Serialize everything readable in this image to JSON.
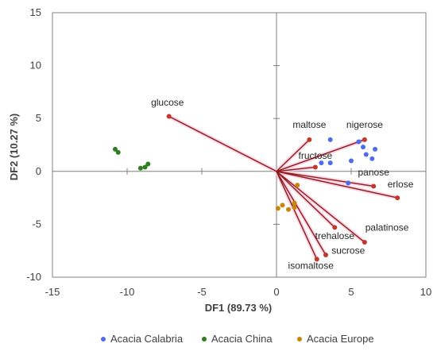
{
  "chart_data": {
    "type": "scatter",
    "xlabel": "DF1 (89.73 %)",
    "ylabel": "DF2 (10.27 %)",
    "xlim": [
      -15,
      10
    ],
    "ylim": [
      -10,
      15
    ],
    "xticks": [
      -15,
      -10,
      -5,
      0,
      5,
      10
    ],
    "yticks": [
      -10,
      -5,
      0,
      5,
      10,
      15
    ],
    "legend_position": "bottom",
    "grid": false,
    "vector_color": "#8B1A1A",
    "vector_highlight": "#F4C2D7",
    "series": [
      {
        "name": "Acacia Calabria",
        "color": "#4F6BED",
        "points": [
          [
            3.6,
            3.0
          ],
          [
            5.5,
            2.8
          ],
          [
            5.8,
            2.3
          ],
          [
            6.6,
            2.1
          ],
          [
            6.0,
            1.6
          ],
          [
            6.4,
            1.2
          ],
          [
            5.0,
            1.0
          ],
          [
            3.0,
            0.8
          ],
          [
            3.6,
            0.8
          ],
          [
            4.8,
            -1.1
          ]
        ]
      },
      {
        "name": "Acacia China",
        "color": "#2E7D1E",
        "points": [
          [
            -10.8,
            2.1
          ],
          [
            -10.6,
            1.8
          ],
          [
            -8.6,
            0.7
          ],
          [
            -8.8,
            0.4
          ],
          [
            -9.1,
            0.3
          ]
        ]
      },
      {
        "name": "Acacia Europe",
        "color": "#C8860A",
        "points": [
          [
            1.4,
            -1.3
          ],
          [
            1.2,
            -3.0
          ],
          [
            0.4,
            -3.2
          ],
          [
            0.1,
            -3.5
          ],
          [
            1.2,
            -3.4
          ],
          [
            0.8,
            -3.6
          ]
        ]
      }
    ],
    "vectors": [
      {
        "label": "glucose",
        "x": -7.2,
        "y": 5.2,
        "lx": -7.3,
        "ly": 6.2,
        "anchor": "middle"
      },
      {
        "label": "maltose",
        "x": 2.2,
        "y": 3.0,
        "lx": 2.2,
        "ly": 4.1,
        "anchor": "middle"
      },
      {
        "label": "nigerose",
        "x": 5.9,
        "y": 3.0,
        "lx": 5.9,
        "ly": 4.1,
        "anchor": "middle"
      },
      {
        "label": "fructose",
        "x": 2.6,
        "y": 0.4,
        "lx": 2.6,
        "ly": 1.2,
        "anchor": "middle"
      },
      {
        "label": "panose",
        "x": 6.5,
        "y": -1.4,
        "lx": 6.5,
        "ly": -0.4,
        "anchor": "middle"
      },
      {
        "label": "erlose",
        "x": 8.1,
        "y": -2.5,
        "lx": 8.3,
        "ly": -1.5,
        "anchor": "middle"
      },
      {
        "label": "palatinose",
        "x": 5.9,
        "y": -6.7,
        "lx": 7.4,
        "ly": -5.6,
        "anchor": "middle"
      },
      {
        "label": "trehalose",
        "x": 3.9,
        "y": -5.3,
        "lx": 3.9,
        "ly": -6.4,
        "anchor": "middle"
      },
      {
        "label": "sucrose",
        "x": 3.3,
        "y": -7.9,
        "lx": 4.8,
        "ly": -7.8,
        "anchor": "middle"
      },
      {
        "label": "isomaltose",
        "x": 2.7,
        "y": -8.3,
        "lx": 2.3,
        "ly": -9.2,
        "anchor": "middle"
      }
    ]
  }
}
